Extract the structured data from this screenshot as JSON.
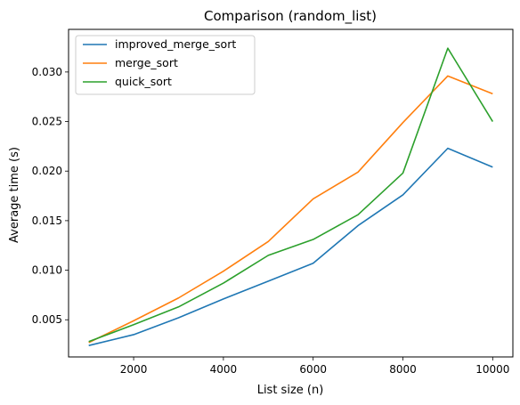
{
  "chart_data": {
    "type": "line",
    "title": "Comparison (random_list)",
    "xlabel": "List size (n)",
    "ylabel": "Average time (s)",
    "x": [
      1000,
      2000,
      3000,
      4000,
      5000,
      6000,
      7000,
      8000,
      9000,
      10000
    ],
    "xlim": [
      550,
      10450
    ],
    "ylim": [
      0.00125,
      0.0343
    ],
    "xticks": [
      2000,
      4000,
      6000,
      8000,
      10000
    ],
    "xtick_labels": [
      "2000",
      "4000",
      "6000",
      "8000",
      "10000"
    ],
    "yticks": [
      0.005,
      0.01,
      0.015,
      0.02,
      0.025,
      0.03
    ],
    "ytick_labels": [
      "0.005",
      "0.010",
      "0.015",
      "0.020",
      "0.025",
      "0.030"
    ],
    "grid": false,
    "legend_position": "upper-left",
    "series": [
      {
        "name": "improved_merge_sort",
        "color": "#1f77b4",
        "values": [
          0.0024,
          0.0035,
          0.0052,
          0.0071,
          0.0089,
          0.0107,
          0.0145,
          0.0176,
          0.0223,
          0.0204
        ]
      },
      {
        "name": "merge_sort",
        "color": "#ff7f0e",
        "values": [
          0.0027,
          0.0049,
          0.0072,
          0.0099,
          0.0129,
          0.0172,
          0.0199,
          0.0249,
          0.0296,
          0.0278
        ]
      },
      {
        "name": "quick_sort",
        "color": "#2ca02c",
        "values": [
          0.0028,
          0.0045,
          0.0063,
          0.0087,
          0.0115,
          0.0131,
          0.0156,
          0.0198,
          0.0324,
          0.025
        ]
      }
    ]
  }
}
